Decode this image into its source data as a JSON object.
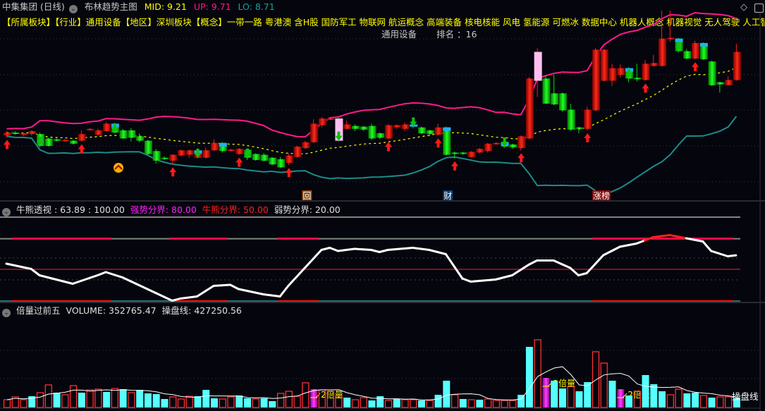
{
  "header": {
    "stock": "中集集团 (日线)",
    "indicator": "布林趋势主图",
    "mid": "MID: 9.21",
    "up": "UP: 9.71",
    "lo": "LO: 8.71",
    "icons": [
      "chevron-down-icon",
      "diamond-icon",
      "panel-toggle-icon"
    ]
  },
  "concepts": "【所属板块】【行业】通用设备【地区】深圳板块【概念】一带一路 粤港澳 含H股 国防军工 物联网 航运概念 高端装备 核电核能 风电 氢能源 可燃冰 数据中心 机器人概念 机器视觉 无人驾驶 人工智能 冷",
  "rank": {
    "industry": "通用设备",
    "rank": "排名 ：16"
  },
  "colors": {
    "up": "#ff1a1a",
    "down": "#00e000",
    "upper_band": "#ff1a8c",
    "lower_band": "#1a8c8c",
    "mid_band": "#ffff00",
    "vol_down": "#55ffff",
    "vol_double": "#e020e0"
  },
  "markers": [
    {
      "text": "回",
      "index": 36,
      "bg": "#8b4a0a"
    },
    {
      "text": "财",
      "index": 53,
      "bg": "#0a3a6b"
    },
    {
      "text": "涨榜",
      "index": 71,
      "bg": "#8b0a0a"
    }
  ],
  "osc_panel": {
    "title": "牛熊透视 : 63.89 : 100.00",
    "strong": "强势分界: 80.00",
    "bullbear": "牛熊分界: 50.00",
    "weak": "弱势分界: 20.00"
  },
  "vol_panel": {
    "title": "倍量过前五",
    "volume": "VOLUME: 352765.47",
    "ma": "操盘线: 427250.56",
    "ma_label": "操盘线",
    "double_label": "2倍量"
  },
  "chart_data": [
    {
      "type": "candlestick",
      "series_ohlc": [
        [
          8.16,
          8.2,
          8.22,
          8.14
        ],
        [
          8.2,
          8.19,
          8.22,
          8.17
        ],
        [
          8.17,
          8.19,
          8.21,
          8.15
        ],
        [
          8.18,
          8.22,
          8.23,
          8.16
        ],
        [
          8.18,
          8.02,
          8.2,
          8.0
        ],
        [
          8.12,
          8.02,
          8.13,
          8.01
        ],
        [
          8.11,
          8.09,
          8.12,
          8.08
        ],
        [
          8.1,
          8.1,
          8.11,
          8.08
        ],
        [
          8.09,
          8.05,
          8.1,
          8.04
        ],
        [
          8.09,
          8.18,
          8.23,
          8.08
        ],
        [
          8.24,
          8.25,
          8.26,
          8.23
        ],
        [
          8.17,
          8.23,
          8.25,
          8.16
        ],
        [
          8.22,
          8.32,
          8.34,
          8.21
        ],
        [
          8.32,
          8.2,
          8.33,
          8.19
        ],
        [
          8.23,
          8.12,
          8.25,
          8.12
        ],
        [
          8.23,
          8.13,
          8.26,
          8.08
        ],
        [
          8.15,
          8.09,
          8.19,
          8.07
        ],
        [
          8.09,
          7.91,
          8.1,
          7.89
        ],
        [
          7.95,
          7.82,
          7.98,
          7.78
        ],
        [
          7.86,
          7.85,
          7.88,
          7.83
        ],
        [
          7.82,
          7.9,
          7.91,
          7.77
        ],
        [
          7.89,
          7.96,
          7.97,
          7.88
        ],
        [
          7.9,
          7.96,
          7.97,
          7.86
        ],
        [
          7.86,
          7.96,
          7.97,
          7.85
        ],
        [
          7.86,
          7.96,
          8.0,
          7.85
        ],
        [
          7.96,
          8.06,
          8.11,
          7.95
        ],
        [
          8.06,
          7.95,
          8.07,
          7.93
        ],
        [
          7.97,
          7.97,
          7.98,
          7.95
        ],
        [
          7.91,
          7.98,
          7.99,
          7.9
        ],
        [
          7.97,
          7.86,
          7.98,
          7.83
        ],
        [
          7.91,
          7.83,
          7.92,
          7.82
        ],
        [
          7.9,
          7.82,
          7.92,
          7.81
        ],
        [
          7.86,
          7.77,
          7.87,
          7.76
        ],
        [
          7.84,
          7.73,
          7.87,
          7.72
        ],
        [
          7.79,
          7.89,
          7.92,
          7.76
        ],
        [
          7.87,
          8.01,
          8.02,
          7.86
        ],
        [
          7.99,
          8.07,
          8.09,
          7.98
        ],
        [
          8.07,
          8.32,
          8.38,
          8.06
        ],
        [
          8.3,
          8.39,
          8.41,
          8.27
        ],
        [
          8.39,
          8.39,
          8.4,
          8.38
        ],
        [
          8.39,
          8.09,
          8.4,
          8.08
        ],
        [
          8.25,
          8.31,
          8.36,
          8.24
        ],
        [
          8.29,
          8.25,
          8.31,
          8.22
        ],
        [
          8.28,
          8.24,
          8.29,
          8.22
        ],
        [
          8.29,
          8.12,
          8.32,
          8.1
        ],
        [
          8.19,
          8.13,
          8.2,
          8.11
        ],
        [
          8.12,
          8.3,
          8.31,
          8.11
        ],
        [
          8.27,
          8.3,
          8.31,
          8.25
        ],
        [
          8.25,
          8.31,
          8.34,
          8.22
        ],
        [
          8.31,
          8.28,
          8.32,
          8.26
        ],
        [
          8.27,
          8.19,
          8.28,
          8.18
        ],
        [
          8.23,
          8.18,
          8.24,
          8.15
        ],
        [
          8.17,
          8.27,
          8.32,
          8.16
        ],
        [
          8.27,
          7.9,
          8.28,
          7.89
        ],
        [
          7.93,
          7.92,
          7.94,
          7.85
        ],
        [
          7.93,
          7.92,
          7.94,
          7.9
        ],
        [
          7.87,
          7.94,
          7.95,
          7.86
        ],
        [
          7.93,
          7.98,
          7.99,
          7.92
        ],
        [
          7.95,
          8.05,
          8.06,
          7.93
        ],
        [
          8.05,
          8.06,
          8.07,
          8.04
        ],
        [
          8.07,
          8.01,
          8.08,
          7.99
        ],
        [
          8.04,
          8.0,
          8.05,
          7.98
        ],
        [
          7.99,
          8.15,
          8.16,
          7.96
        ],
        [
          8.12,
          8.93,
          8.95,
          8.11
        ],
        [
          8.9,
          9.29,
          9.34,
          8.68
        ],
        [
          8.93,
          8.59,
          8.97,
          8.59
        ],
        [
          8.73,
          8.58,
          8.98,
          8.57
        ],
        [
          8.73,
          8.5,
          8.74,
          8.48
        ],
        [
          8.51,
          8.24,
          8.59,
          8.22
        ],
        [
          8.27,
          8.25,
          8.28,
          8.19
        ],
        [
          8.25,
          8.51,
          8.55,
          8.23
        ],
        [
          8.5,
          9.32,
          9.34,
          8.49
        ],
        [
          8.9,
          9.32,
          9.33,
          8.89
        ],
        [
          8.9,
          9.07,
          9.13,
          8.83
        ],
        [
          8.98,
          9.07,
          9.12,
          8.94
        ],
        [
          9.07,
          8.93,
          9.08,
          8.88
        ],
        [
          8.94,
          8.92,
          9.13,
          8.89
        ],
        [
          8.91,
          9.13,
          9.18,
          8.9
        ],
        [
          9.1,
          9.14,
          9.25,
          9.09
        ],
        [
          9.1,
          9.47,
          9.85,
          9.09
        ],
        [
          9.46,
          9.48,
          9.85,
          9.43
        ],
        [
          9.47,
          9.3,
          9.48,
          9.28
        ],
        [
          9.3,
          9.2,
          9.33,
          9.19
        ],
        [
          9.2,
          9.41,
          9.44,
          9.19
        ],
        [
          9.41,
          9.19,
          9.42,
          9.18
        ],
        [
          9.16,
          8.84,
          9.17,
          8.83
        ],
        [
          8.88,
          8.85,
          8.89,
          8.74
        ],
        [
          8.84,
          8.91,
          8.96,
          8.86
        ],
        [
          8.91,
          9.29,
          9.4,
          8.9
        ]
      ],
      "pink_body": [
        40,
        64
      ],
      "blue_top": [
        13,
        23,
        26,
        49,
        53,
        60,
        75,
        81,
        84
      ],
      "buy_arrows": [
        0,
        9,
        20,
        28,
        34,
        46,
        52,
        54,
        62,
        70,
        77,
        83
      ],
      "sell_arrows": [
        4,
        13,
        23,
        29,
        40,
        49,
        60,
        75,
        81
      ],
      "bollinger_period": 20
    },
    {
      "type": "line",
      "ylim": [
        20,
        100
      ],
      "levels": [
        100,
        80,
        50,
        20
      ],
      "knots": [
        [
          0,
          56
        ],
        [
          3,
          51
        ],
        [
          4,
          45
        ],
        [
          8,
          37
        ],
        [
          11,
          45
        ],
        [
          12,
          48
        ],
        [
          14,
          43
        ],
        [
          17,
          32
        ],
        [
          20,
          21
        ],
        [
          21,
          23
        ],
        [
          23,
          25
        ],
        [
          25,
          35
        ],
        [
          27,
          36
        ],
        [
          28,
          32
        ],
        [
          31,
          27
        ],
        [
          33,
          25
        ],
        [
          34,
          35
        ],
        [
          36,
          52
        ],
        [
          38,
          69
        ],
        [
          39,
          71
        ],
        [
          40,
          68
        ],
        [
          42,
          70
        ],
        [
          44,
          69
        ],
        [
          45,
          67
        ],
        [
          46,
          69
        ],
        [
          49,
          71
        ],
        [
          51,
          69
        ],
        [
          53,
          65
        ],
        [
          55,
          42
        ],
        [
          56,
          39
        ],
        [
          59,
          41
        ],
        [
          61,
          45
        ],
        [
          63,
          55
        ],
        [
          64,
          59
        ],
        [
          66,
          59
        ],
        [
          68,
          52
        ],
        [
          69,
          45
        ],
        [
          70,
          47
        ],
        [
          72,
          64
        ],
        [
          74,
          72
        ],
        [
          76,
          75
        ],
        [
          78,
          81
        ],
        [
          80,
          83
        ],
        [
          82,
          80
        ],
        [
          84,
          77
        ],
        [
          85,
          68
        ],
        [
          87,
          63
        ],
        [
          88,
          63.89
        ]
      ],
      "red_ranges": [
        [
          1,
          13
        ],
        [
          20,
          27
        ],
        [
          33,
          38
        ],
        [
          71,
          88
        ]
      ]
    },
    {
      "type": "bar",
      "volume": [
        293700,
        400500,
        293700,
        427200,
        560700,
        854400,
        560700,
        480600,
        827700,
        560700,
        667500,
        694200,
        587400,
        720900,
        694200,
        560700,
        667500,
        534000,
        507300,
        320400,
        400500,
        320400,
        427200,
        427200,
        667500,
        347100,
        320400,
        400500,
        453900,
        347100,
        320400,
        347100,
        240300,
        534000,
        614100,
        427200,
        934500,
        694200,
        667500,
        614100,
        453900,
        373800,
        293700,
        373800,
        267000,
        427200,
        267000,
        320400,
        293700,
        293700,
        267000,
        267000,
        480600,
        1014600,
        480600,
        320400,
        293700,
        293700,
        320400,
        267000,
        267000,
        267000,
        480600,
        2296200,
        2563200,
        1121400,
        1014600,
        720900,
        801000,
        614100,
        961200,
        2109300,
        1682100,
        1014600,
        694200,
        453900,
        614100,
        1228200,
        881100,
        614100,
        480600,
        694200,
        534000,
        560700,
        453900,
        373800,
        400500,
        400500,
        352765
      ],
      "kind": "uuuduuduuduudududddduuuddduuddudd uuuumuuuduudduduududdudu duuuuddumddudduudmduddduudduduudduuu",
      "ma_period": 5
    }
  ]
}
